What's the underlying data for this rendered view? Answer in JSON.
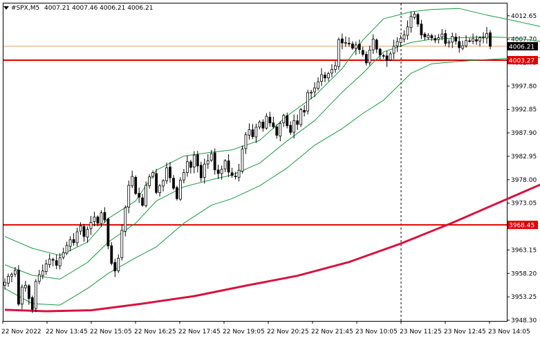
{
  "chart_data": {
    "type": "candlestick",
    "title": "#SPX,M5",
    "ohlc_header": "4007.21 4007.46 4006.21 4006.21",
    "y_ticks": [
      "4012.65",
      "4007.70",
      "4002.75",
      "3997.80",
      "3992.85",
      "3987.90",
      "3982.95",
      "3978.00",
      "3973.05",
      "3968.10",
      "3963.15",
      "3958.20",
      "3953.25",
      "3948.30"
    ],
    "ylim": [
      3948.15,
      4015.25
    ],
    "x_ticks": [
      "22 Nov 2022",
      "22 Nov 13:45",
      "22 Nov 15:05",
      "22 Nov 16:25",
      "22 Nov 17:45",
      "22 Nov 19:05",
      "22 Nov 20:25",
      "22 Nov 21:45",
      "23 Nov 10:05",
      "23 Nov 11:25",
      "23 Nov 12:45",
      "23 Nov 14:05"
    ],
    "price_labels": {
      "current": "4006.21",
      "level_upper": "4003.27",
      "level_lower": "3968.45"
    },
    "levels": [
      4003.27,
      3968.45
    ],
    "current_price": 4006.21,
    "session_separator_index": 115,
    "colors": {
      "candles": "#000000",
      "bollinger": "#1a9641",
      "moving_average": "#d6133f",
      "level_lines": "#e00000",
      "current_line": "#e8a060",
      "label_bg": "#e00000"
    },
    "close_path": [
      3956.3,
      3957.6,
      3958.0,
      3958.8,
      3951.7,
      3955.3,
      3955.7,
      3952.9,
      3950.6,
      3956.5,
      3957.9,
      3958.7,
      3960.2,
      3961.2,
      3961.0,
      3959.9,
      3961.5,
      3962.6,
      3964.1,
      3965.3,
      3964.7,
      3967.0,
      3968.2,
      3966.0,
      3967.5,
      3969.0,
      3970.1,
      3968.8,
      3971.0,
      3969.5,
      3964.0,
      3960.3,
      3958.7,
      3961.4,
      3967.3,
      3972.1,
      3976.8,
      3978.7,
      3975.1,
      3974.3,
      3972.6,
      3976.8,
      3978.6,
      3979.5,
      3975.3,
      3976.7,
      3977.8,
      3980.5,
      3978.4,
      3976.2,
      3974.0,
      3977.9,
      3979.5,
      3981.8,
      3980.6,
      3983.2,
      3980.9,
      3978.4,
      3981.3,
      3982.0,
      3983.5,
      3980.1,
      3979.3,
      3980.2,
      3982.0,
      3979.6,
      3978.9,
      3978.7,
      3980.0,
      3984.5,
      3987.5,
      3988.6,
      3987.1,
      3989.1,
      3990.2,
      3988.9,
      3991.4,
      3990.0,
      3989.2,
      3987.4,
      3989.9,
      3991.6,
      3989.4,
      3988.0,
      3990.5,
      3989.7,
      3992.8,
      3992.3,
      3996.4,
      3996.5,
      3997.4,
      3998.7,
      4000.2,
      3999.5,
      4000.4,
      4001.3,
      4002.1,
      4007.6,
      4006.9,
      4007.0,
      4006.8,
      4005.8,
      4006.5,
      4005.5,
      4004.5,
      4002.7,
      4005.4,
      4007.7,
      4005.6,
      4004.4,
      4004.2,
      4003.2,
      4004.6,
      4006.2,
      4007.2,
      4007.9,
      4008.6,
      4010.3,
      4012.5,
      4013.0,
      4010.9,
      4008.6,
      4008.2,
      4008.5,
      4008.0,
      4007.5,
      4008.0,
      4008.8,
      4006.8,
      4007.1,
      4008.3,
      4007.3,
      4005.9,
      4006.3,
      4007.4,
      4007.3,
      4007.8,
      4007.3,
      4008.0,
      4008.1,
      4008.9,
      4006.2
    ],
    "ma_points": [
      [
        0,
        3950.5
      ],
      [
        12,
        3950.2
      ],
      [
        25,
        3950.4
      ],
      [
        40,
        3951.8
      ],
      [
        55,
        3953.4
      ],
      [
        70,
        3955.6
      ],
      [
        85,
        3957.7
      ],
      [
        100,
        3960.6
      ],
      [
        115,
        3964.5
      ],
      [
        130,
        3968.9
      ],
      [
        142,
        3972.7
      ],
      [
        156,
        3977.1
      ],
      [
        165,
        3980.2
      ]
    ],
    "bb_upper": [
      [
        0,
        3966.0
      ],
      [
        8,
        3963.5
      ],
      [
        16,
        3962.0
      ],
      [
        24,
        3964.8
      ],
      [
        30,
        3969.8
      ],
      [
        38,
        3973.5
      ],
      [
        44,
        3980.0
      ],
      [
        52,
        3983.0
      ],
      [
        60,
        3983.8
      ],
      [
        66,
        3984.3
      ],
      [
        74,
        3986.3
      ],
      [
        82,
        3991.5
      ],
      [
        90,
        3995.7
      ],
      [
        98,
        4001.5
      ],
      [
        104,
        4007.5
      ],
      [
        110,
        4012.0
      ],
      [
        118,
        4013.5
      ],
      [
        124,
        4014.0
      ],
      [
        132,
        4014.2
      ],
      [
        140,
        4012.8
      ],
      [
        148,
        4011.6
      ],
      [
        156,
        4010.3
      ],
      [
        162,
        4009.2
      ]
    ],
    "bb_middle": [
      [
        0,
        3960.0
      ],
      [
        8,
        3957.8
      ],
      [
        16,
        3957.0
      ],
      [
        24,
        3960.5
      ],
      [
        30,
        3964.8
      ],
      [
        38,
        3968.8
      ],
      [
        44,
        3973.5
      ],
      [
        52,
        3976.5
      ],
      [
        60,
        3978.0
      ],
      [
        66,
        3979.0
      ],
      [
        74,
        3981.5
      ],
      [
        82,
        3986.2
      ],
      [
        90,
        3990.5
      ],
      [
        98,
        3996.5
      ],
      [
        104,
        4000.5
      ],
      [
        110,
        4005.0
      ],
      [
        118,
        4007.0
      ],
      [
        124,
        4007.7
      ],
      [
        132,
        4008.0
      ],
      [
        140,
        4008.2
      ],
      [
        148,
        4008.0
      ],
      [
        156,
        4007.2
      ],
      [
        162,
        4006.8
      ]
    ],
    "bb_lower": [
      [
        0,
        3955.0
      ],
      [
        8,
        3951.8
      ],
      [
        16,
        3951.5
      ],
      [
        24,
        3955.0
      ],
      [
        30,
        3958.2
      ],
      [
        38,
        3961.5
      ],
      [
        44,
        3963.8
      ],
      [
        52,
        3968.8
      ],
      [
        60,
        3972.6
      ],
      [
        66,
        3974.0
      ],
      [
        74,
        3976.7
      ],
      [
        82,
        3980.5
      ],
      [
        90,
        3985.3
      ],
      [
        98,
        3988.8
      ],
      [
        104,
        3992.0
      ],
      [
        110,
        3994.8
      ],
      [
        118,
        4000.5
      ],
      [
        124,
        4002.5
      ],
      [
        132,
        4003.0
      ],
      [
        140,
        4003.4
      ],
      [
        148,
        4003.7
      ],
      [
        156,
        4003.8
      ],
      [
        162,
        4004.2
      ]
    ]
  }
}
